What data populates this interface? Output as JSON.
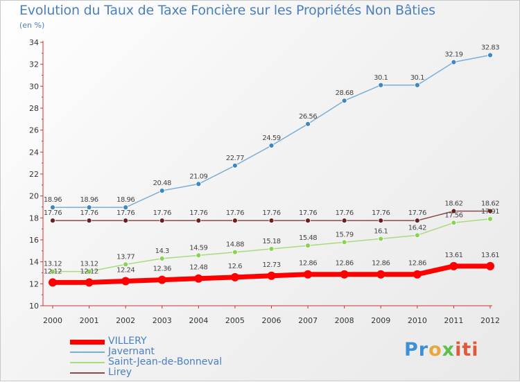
{
  "title": "Evolution du Taux de Taxe Foncière sur les Propriétés Non Bâties",
  "unit_label": "(en %)",
  "logo": {
    "text": "Proxiti",
    "parts": [
      "Pr",
      "o",
      "x",
      "iti"
    ],
    "colors": [
      "#3d8fd6",
      "#e8a83c",
      "#5bbf4a",
      "#e05a3a"
    ]
  },
  "chart_data": {
    "type": "line",
    "x": [
      "2000",
      "2001",
      "2002",
      "2003",
      "2004",
      "2005",
      "2006",
      "2007",
      "2008",
      "2009",
      "2010",
      "2011",
      "2012"
    ],
    "ylim": [
      10,
      34
    ],
    "yticks": [
      10,
      12,
      14,
      16,
      18,
      20,
      22,
      24,
      26,
      28,
      30,
      32,
      34
    ],
    "grid": false,
    "legend_position": "bottom-left",
    "series": [
      {
        "name": "VILLERY",
        "color": "#ff0000",
        "line_width": 7,
        "marker_radius": 6,
        "values": [
          12.12,
          12.12,
          12.24,
          12.36,
          12.48,
          12.6,
          12.73,
          12.86,
          12.86,
          12.86,
          12.86,
          13.61,
          13.61
        ],
        "labels": [
          "12.12",
          "12.12",
          "12.24",
          "12.36",
          "12.48",
          "12.6",
          "12.73",
          "12.86",
          "12.86",
          "12.86",
          "12.86",
          "13.61",
          "13.61"
        ]
      },
      {
        "name": "Javernant",
        "color": "#7aaed8",
        "marker_color": "#3e86c4",
        "line_width": 1.5,
        "marker_radius": 3.5,
        "values": [
          18.96,
          18.96,
          18.96,
          20.48,
          21.09,
          22.77,
          24.59,
          26.56,
          28.68,
          30.1,
          30.1,
          32.19,
          32.83
        ],
        "labels": [
          "18.96",
          "18.96",
          "18.96",
          "20.48",
          "21.09",
          "22.77",
          "24.59",
          "26.56",
          "28.68",
          "30.1",
          "30.1",
          "32.19",
          "32.83"
        ]
      },
      {
        "name": "Saint-Jean-de-Bonneval",
        "color": "#a6dc7c",
        "marker_color": "#8ad352",
        "line_width": 1.5,
        "marker_radius": 3.5,
        "values": [
          13.12,
          13.12,
          13.77,
          14.3,
          14.59,
          14.88,
          15.18,
          15.48,
          15.79,
          16.1,
          16.42,
          17.56,
          17.91
        ],
        "labels": [
          "13.12",
          "13.12",
          "13.77",
          "14.3",
          "14.59",
          "14.88",
          "15.18",
          "15.48",
          "15.79",
          "16.1",
          "16.42",
          "17.56",
          "17.91"
        ]
      },
      {
        "name": "Lirey",
        "color": "#8b4a4a",
        "marker_color": "#6b2020",
        "line_width": 1.5,
        "marker_radius": 3.5,
        "values": [
          17.76,
          17.76,
          17.76,
          17.76,
          17.76,
          17.76,
          17.76,
          17.76,
          17.76,
          17.76,
          17.76,
          18.62,
          18.62
        ],
        "labels": [
          "17.76",
          "17.76",
          "17.76",
          "17.76",
          "17.76",
          "17.76",
          "17.76",
          "17.76",
          "17.76",
          "17.76",
          "17.76",
          "18.62",
          "18.62"
        ]
      }
    ]
  }
}
